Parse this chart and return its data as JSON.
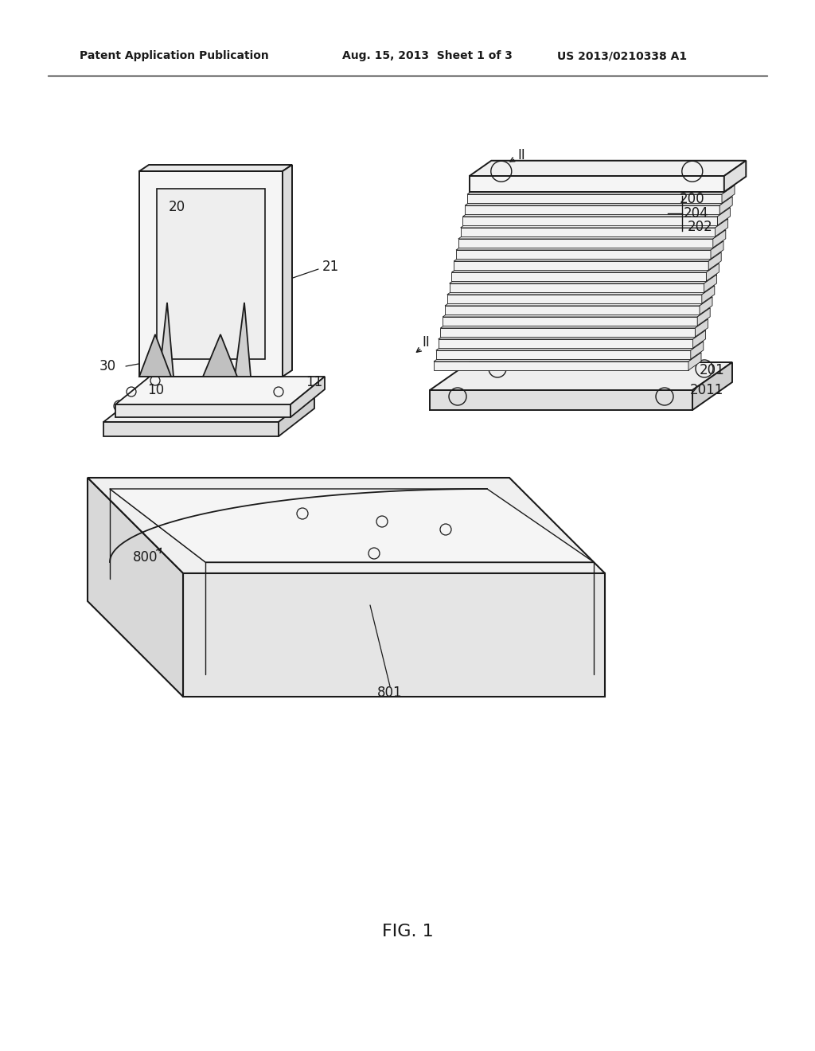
{
  "bg_color": "#ffffff",
  "line_color": "#1a1a1a",
  "header_left": "Patent Application Publication",
  "header_mid": "Aug. 15, 2013  Sheet 1 of 3",
  "header_right": "US 2013/0210338 A1",
  "figure_label": "FIG. 1"
}
